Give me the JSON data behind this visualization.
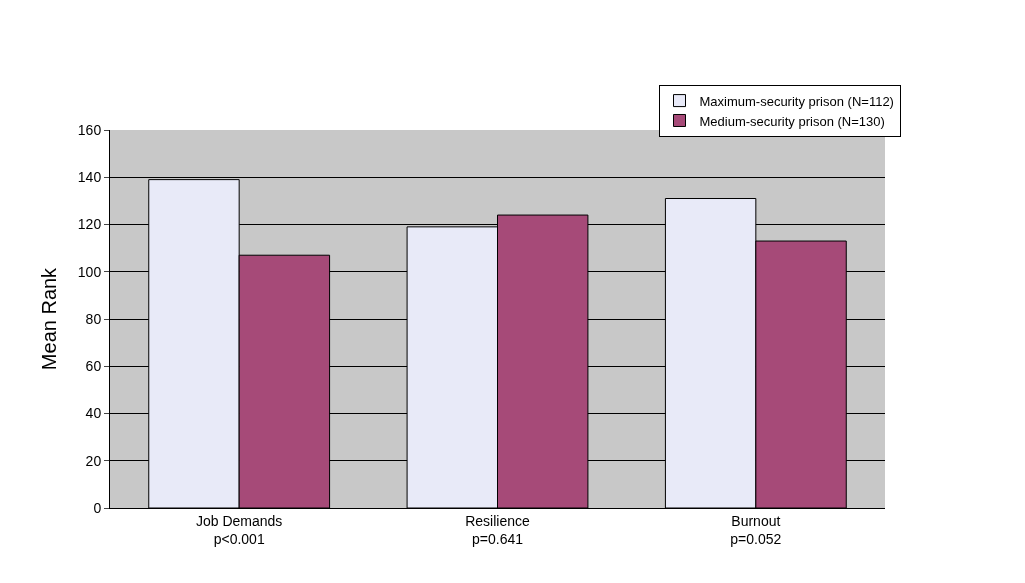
{
  "chart_data": {
    "type": "bar",
    "ylabel": "Mean Rank",
    "categories": [
      "Job Demands\np<0.001",
      "Resilience\np=0.641",
      "Burnout\np=0.052"
    ],
    "series": [
      {
        "name": "Maximum-security prison (N=112)",
        "color": "#e8eaf8",
        "values": [
          139,
          119,
          131
        ]
      },
      {
        "name": "Medium-security prison (N=130)",
        "color": "#a64a78",
        "values": [
          107,
          124,
          113
        ]
      }
    ],
    "ylim": [
      0,
      160
    ],
    "yticks": [
      0,
      20,
      40,
      60,
      80,
      100,
      120,
      140,
      160
    ],
    "grid": "y",
    "legend": "top right"
  }
}
